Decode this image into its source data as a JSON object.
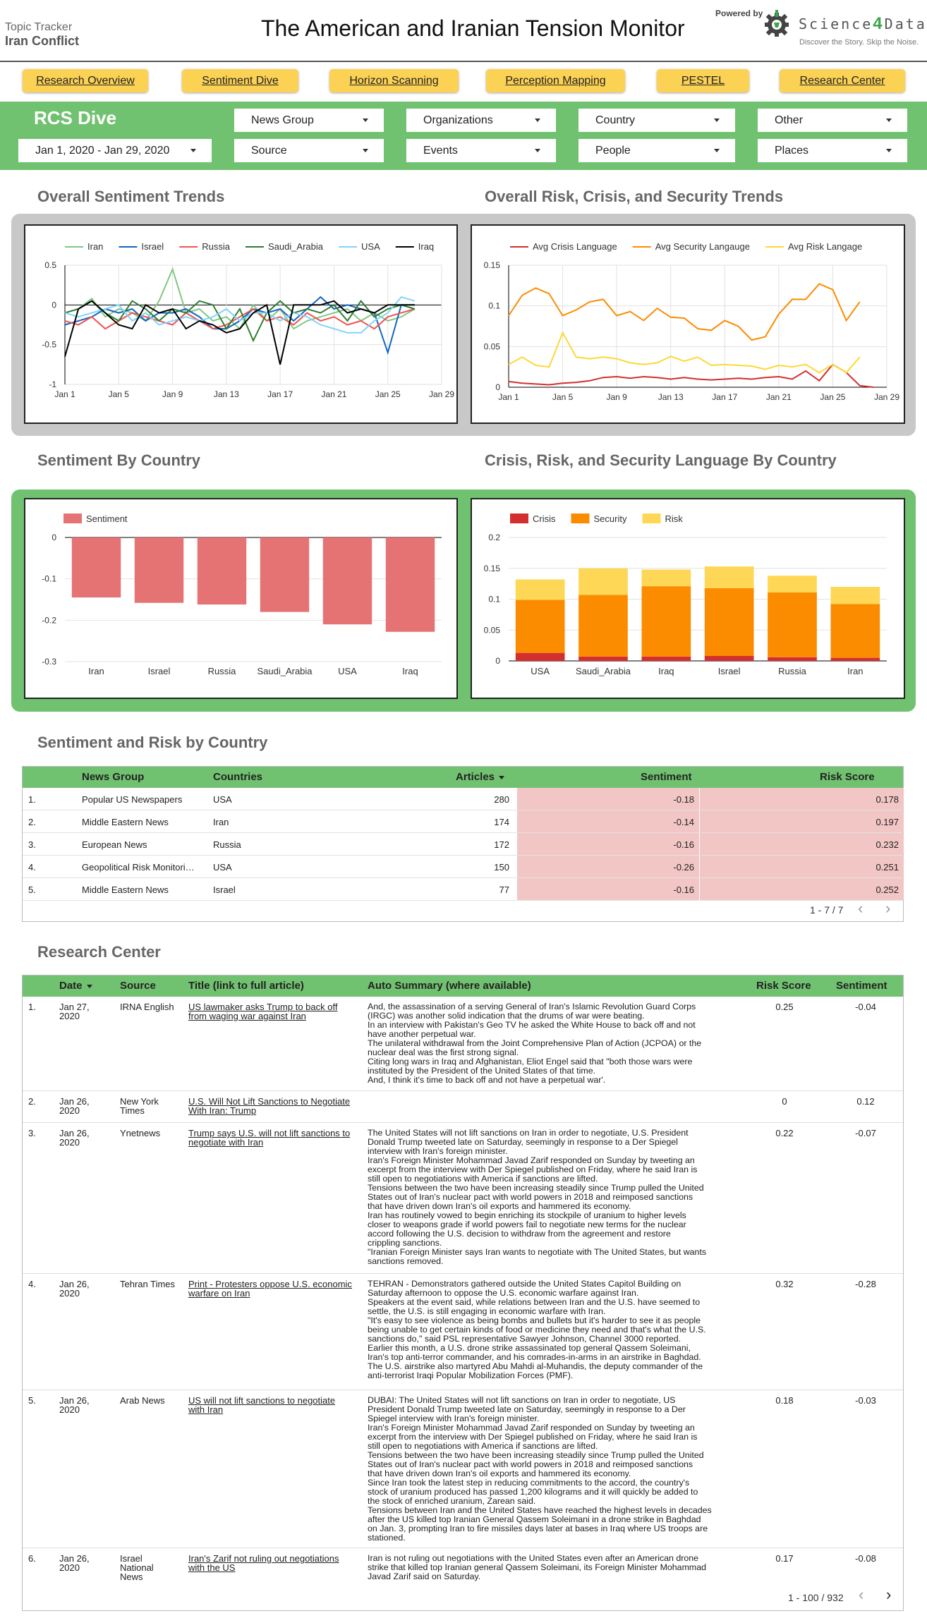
{
  "header": {
    "kicker": "Topic Tracker",
    "topic": "Iran Conflict",
    "title": "The American and Iranian Tension Monitor",
    "powered_by": "Powered by",
    "logo_left": "Science",
    "logo_num": "4",
    "logo_right": "Data",
    "logo_tagline": "Discover the Story. Skip the Noise."
  },
  "nav": [
    "Research Overview",
    "Sentiment Dive",
    "Horizon Scanning",
    "Perception Mapping",
    "PESTEL",
    "Research Center"
  ],
  "filters": {
    "title": "RCS Dive",
    "date_range": "Jan 1, 2020 - Jan 29, 2020",
    "dropdowns": [
      "News Group",
      "Organizations",
      "Country",
      "Other",
      "Source",
      "Events",
      "People",
      "Places"
    ]
  },
  "sections": {
    "sentiment_trends": "Overall Sentiment Trends",
    "risk_trends": "Overall Risk, Crisis, and Security Trends",
    "sentiment_by_country": "Sentiment By Country",
    "crs_by_country": "Crisis, Risk, and Security Language By Country",
    "sentiment_risk_table": "Sentiment and Risk by Country",
    "research_center": "Research Center"
  },
  "colors": {
    "green": "#71c270",
    "yellow_button": "#fcd255",
    "pink_cell": "#f2c6c5",
    "bar_sentiment": "#e57373",
    "crisis": "#d32f2f",
    "security": "#fb8c00",
    "risk": "#fdd755"
  },
  "chart_data": [
    {
      "type": "line",
      "x": [
        "Jan 1",
        "Jan 2",
        "Jan 3",
        "Jan 4",
        "Jan 5",
        "Jan 6",
        "Jan 7",
        "Jan 8",
        "Jan 9",
        "Jan 10",
        "Jan 11",
        "Jan 12",
        "Jan 13",
        "Jan 14",
        "Jan 15",
        "Jan 16",
        "Jan 17",
        "Jan 18",
        "Jan 19",
        "Jan 20",
        "Jan 21",
        "Jan 22",
        "Jan 23",
        "Jan 24",
        "Jan 25",
        "Jan 26",
        "Jan 27"
      ],
      "x_ticks": [
        "Jan 1",
        "Jan 5",
        "Jan 9",
        "Jan 13",
        "Jan 17",
        "Jan 21",
        "Jan 25",
        "Jan 29"
      ],
      "ylim": [
        -1,
        0.5
      ],
      "y_ticks": [
        "0.5",
        "0",
        "-0.5",
        "-1"
      ],
      "legend_position": "top",
      "series": [
        {
          "name": "Iran",
          "color": "#81c784",
          "values": [
            -0.1,
            -0.05,
            0.08,
            -0.15,
            -0.05,
            -0.1,
            -0.2,
            0.05,
            0.45,
            -0.1,
            -0.05,
            -0.2,
            -0.15,
            -0.3,
            0,
            -0.2,
            -0.05,
            -0.3,
            -0.2,
            -0.15,
            -0.1,
            -0.05,
            -0.2,
            -0.1,
            -0.2,
            -0.15,
            -0.05
          ]
        },
        {
          "name": "Israel",
          "color": "#1565c0",
          "values": [
            -0.25,
            -0.2,
            -0.15,
            -0.05,
            -0.1,
            -0.05,
            -0.2,
            -0.1,
            -0.1,
            -0.05,
            -0.15,
            -0.3,
            -0.3,
            -0.2,
            -0.05,
            -0.1,
            -0.05,
            -0.2,
            -0.05,
            0.1,
            -0.05,
            0,
            -0.05,
            -0.1,
            -0.6,
            0,
            0
          ]
        },
        {
          "name": "Russia",
          "color": "#ef5350",
          "values": [
            -0.2,
            -0.25,
            -0.15,
            -0.3,
            -0.2,
            -0.1,
            -0.15,
            -0.2,
            -0.25,
            -0.1,
            -0.2,
            -0.3,
            -0.25,
            -0.15,
            -0.05,
            -0.2,
            -0.15,
            -0.25,
            -0.1,
            -0.2,
            -0.15,
            -0.25,
            -0.2,
            -0.3,
            -0.15,
            -0.1,
            -0.05
          ]
        },
        {
          "name": "Saudi_Arabia",
          "color": "#2e7d32",
          "values": [
            -0.1,
            -0.05,
            0.05,
            -0.1,
            -0.2,
            0.05,
            -0.05,
            -0.2,
            -0.05,
            -0.1,
            0.05,
            0,
            -0.3,
            -0.05,
            -0.45,
            -0.1,
            0.05,
            -0.1,
            -0.05,
            -0.1,
            0,
            -0.2,
            0.05,
            -0.15,
            -0.05,
            0,
            -0.05
          ]
        },
        {
          "name": "USA",
          "color": "#81d4fa",
          "values": [
            -0.1,
            -0.15,
            -0.1,
            -0.05,
            0,
            -0.2,
            -0.1,
            -0.25,
            -0.2,
            -0.15,
            -0.2,
            -0.15,
            -0.05,
            -0.2,
            -0.1,
            -0.1,
            -0.2,
            -0.1,
            -0.15,
            -0.25,
            -0.3,
            -0.35,
            -0.35,
            -0.2,
            -0.1,
            0.1,
            0.05
          ]
        },
        {
          "name": "Iraq",
          "color": "#000000",
          "values": [
            -0.65,
            -0.05,
            0.05,
            -0.1,
            -0.25,
            -0.3,
            0,
            -0.1,
            -0.05,
            -0.3,
            -0.2,
            -0.25,
            -0.35,
            -0.3,
            -0.1,
            0,
            -0.75,
            0,
            0,
            0,
            0.05,
            -0.1,
            -0.05,
            -0.1,
            0,
            0,
            0
          ]
        }
      ]
    },
    {
      "type": "line",
      "x": [
        "Jan 1",
        "Jan 2",
        "Jan 3",
        "Jan 4",
        "Jan 5",
        "Jan 6",
        "Jan 7",
        "Jan 8",
        "Jan 9",
        "Jan 10",
        "Jan 11",
        "Jan 12",
        "Jan 13",
        "Jan 14",
        "Jan 15",
        "Jan 16",
        "Jan 17",
        "Jan 18",
        "Jan 19",
        "Jan 20",
        "Jan 21",
        "Jan 22",
        "Jan 23",
        "Jan 24",
        "Jan 25",
        "Jan 26",
        "Jan 27",
        "Jan 28"
      ],
      "x_ticks": [
        "Jan 1",
        "Jan 5",
        "Jan 9",
        "Jan 13",
        "Jan 17",
        "Jan 21",
        "Jan 25",
        "Jan 29"
      ],
      "ylim": [
        0,
        0.15
      ],
      "y_ticks": [
        "0.15",
        "0.1",
        "0.05",
        "0"
      ],
      "legend_position": "top",
      "series": [
        {
          "name": "Avg Crisis Language",
          "color": "#d32f2f",
          "values": [
            0.007,
            0.005,
            0.004,
            0.003,
            0.005,
            0.006,
            0.008,
            0.012,
            0.013,
            0.011,
            0.013,
            0.012,
            0.01,
            0.012,
            0.01,
            0.009,
            0.01,
            0.011,
            0.01,
            0.012,
            0.013,
            0.01,
            0.02,
            0.008,
            0.028,
            0.018,
            0.002,
            0
          ]
        },
        {
          "name": "Avg Security Langauge",
          "color": "#fb8c00",
          "values": [
            0.088,
            0.113,
            0.122,
            0.115,
            0.088,
            0.095,
            0.105,
            0.108,
            0.088,
            0.093,
            0.082,
            0.097,
            0.086,
            0.085,
            0.072,
            0.07,
            0.082,
            0.075,
            0.058,
            0.062,
            0.09,
            0.108,
            0.108,
            0.127,
            0.12,
            0.082,
            0.105,
            null
          ]
        },
        {
          "name": "Avg Risk Langage",
          "color": "#fdd835",
          "values": [
            0.028,
            0.037,
            0.027,
            0.025,
            0.067,
            0.037,
            0.035,
            0.037,
            0.035,
            0.03,
            0.028,
            0.03,
            0.038,
            0.032,
            0.037,
            0.027,
            0.028,
            0.027,
            0.026,
            0.022,
            0.027,
            0.025,
            0.028,
            0.018,
            0.028,
            0.018,
            0.037,
            null
          ]
        }
      ]
    },
    {
      "type": "bar",
      "categories": [
        "Iran",
        "Israel",
        "Russia",
        "Saudi_Arabia",
        "USA",
        "Iraq"
      ],
      "series": [
        {
          "name": "Sentiment",
          "color": "#e57373",
          "values": [
            -0.145,
            -0.158,
            -0.162,
            -0.18,
            -0.21,
            -0.228
          ]
        }
      ],
      "ylim": [
        -0.3,
        0
      ],
      "y_ticks": [
        "0",
        "-0.1",
        "-0.2",
        "-0.3"
      ]
    },
    {
      "type": "bar",
      "stacked": true,
      "categories": [
        "USA",
        "Saudi_Arabia",
        "Iraq",
        "Israel",
        "Russia",
        "Iran"
      ],
      "series": [
        {
          "name": "Crisis",
          "color": "#d32f2f",
          "values": [
            0.013,
            0.007,
            0.007,
            0.008,
            0.006,
            0.005
          ]
        },
        {
          "name": "Security",
          "color": "#fb8c00",
          "values": [
            0.086,
            0.1,
            0.114,
            0.11,
            0.105,
            0.087
          ]
        },
        {
          "name": "Risk",
          "color": "#fdd755",
          "values": [
            0.033,
            0.043,
            0.027,
            0.035,
            0.027,
            0.028
          ]
        }
      ],
      "ylim": [
        0,
        0.2
      ],
      "y_ticks": [
        "0.2",
        "0.15",
        "0.1",
        "0.05",
        "0"
      ]
    }
  ],
  "country_table": {
    "headers": [
      "News Group",
      "Countries",
      "Articles",
      "Sentiment",
      "Risk Score"
    ],
    "rows": [
      {
        "n": "1.",
        "group": "Popular US Newspapers",
        "country": "USA",
        "articles": "280",
        "sentiment": "-0.18",
        "risk": "0.178"
      },
      {
        "n": "2.",
        "group": "Middle Eastern News",
        "country": "Iran",
        "articles": "174",
        "sentiment": "-0.14",
        "risk": "0.197"
      },
      {
        "n": "3.",
        "group": "European News",
        "country": "Russia",
        "articles": "172",
        "sentiment": "-0.16",
        "risk": "0.232"
      },
      {
        "n": "4.",
        "group": "Geopolitical Risk Monitori…",
        "country": "USA",
        "articles": "150",
        "sentiment": "-0.26",
        "risk": "0.251"
      },
      {
        "n": "5.",
        "group": "Middle Eastern News",
        "country": "Israel",
        "articles": "77",
        "sentiment": "-0.16",
        "risk": "0.252"
      }
    ],
    "pager": "1 - 7 / 7"
  },
  "research": {
    "headers": [
      "Date",
      "Source",
      "Title (link to full article)",
      "Auto Summary (where available)",
      "Risk Score",
      "Sentiment"
    ],
    "rows": [
      {
        "n": "1.",
        "date": "Jan 27,\n2020",
        "source": "IRNA English",
        "title": "US lawmaker asks Trump to back off\nfrom waging war against Iran",
        "summary": "And, the assassination of a serving General of Iran's Islamic Revolution Guard Corps\n(IRGC) was another solid indication that the drums of war were beating.\nIn an interview with Pakistan's Geo TV he asked the White House to back off and not\nhave another perpetual war.\nThe unilateral withdrawal from the Joint Comprehensive Plan of Action (JCPOA) or the\nnuclear deal was the first strong signal.\nCiting long wars in Iraq and Afghanistan, Eliot Engel said that \"both those wars were\ninstituted by the President of the United States of that time.\nAnd, I think it's time to back off and not have a perpetual war'.",
        "risk": "0.25",
        "sentiment": "-0.04"
      },
      {
        "n": "2.",
        "date": "Jan 26,\n2020",
        "source": "New York\nTimes",
        "title": "U.S. Will Not Lift Sanctions to Negotiate\nWith Iran: Trump",
        "summary": "",
        "risk": "0",
        "sentiment": "0.12"
      },
      {
        "n": "3.",
        "date": "Jan 26,\n2020",
        "source": "Ynetnews",
        "title": "Trump says U.S. will not lift sanctions to\nnegotiate with Iran",
        "summary": "The United States will not lift sanctions on Iran in order to negotiate, U.S. President\nDonald Trump tweeted late on Saturday, seemingly in response to a Der Spiegel\ninterview with Iran's foreign minister.\nIran's Foreign Minister Mohammad Javad Zarif responded on Sunday by tweeting an\nexcerpt from the interview with Der Spiegel published on Friday, where he said Iran is\nstill open to negotiations with America if sanctions are lifted.\nTensions between the two have been increasing steadily since Trump pulled the United\nStates out of Iran's nuclear pact with world powers in 2018 and reimposed sanctions\nthat have driven down Iran's oil exports and hammered its economy.\nIran has routinely vowed to begin enriching its stockpile of uranium to higher levels\ncloser to weapons grade if world powers fail to negotiate new terms for the nuclear\naccord following the U.S. decision to withdraw from the agreement and restore\ncrippling sanctions.\n\"Iranian Foreign Minister says Iran wants to negotiate with The United States, but wants\nsanctions removed.",
        "risk": "0.22",
        "sentiment": "-0.07"
      },
      {
        "n": "4.",
        "date": "Jan 26,\n2020",
        "source": "Tehran Times",
        "title": "Print - Protesters oppose U.S. economic\nwarfare on Iran",
        "summary": "TEHRAN - Demonstrators gathered outside the United States Capitol Building on\nSaturday afternoon to oppose the U.S. economic warfare against Iran.\nSpeakers at the event said, while relations between Iran and the U.S. have seemed to\nsettle, the U.S. is still engaging in economic warfare with Iran.\n\"It's easy to see violence as being bombs and bullets but it's harder to see it as people\nbeing unable to get certain kinds of food or medicine they need and that's what the U.S.\nsanctions do,\" said PSL representative Sawyer Johnson, Channel 3000 reported.\nEarlier this month, a U.S. drone strike assassinated top general Qassem Soleimani,\nIran's top anti-terror commander, and his comrades-in-arms in an airstrike in Baghdad.\nThe U.S. airstrike also martyred Abu Mahdi al-Muhandis, the deputy commander of the\nanti-terrorist Iraqi Popular Mobilization Forces (PMF).",
        "risk": "0.32",
        "sentiment": "-0.28"
      },
      {
        "n": "5.",
        "date": "Jan 26,\n2020",
        "source": "Arab News",
        "title": "US will not lift sanctions to negotiate\nwith Iran",
        "summary": "DUBAI: The United States will not lift sanctions on Iran in order to negotiate, US\nPresident Donald Trump tweeted late on Saturday, seemingly in response to a Der\nSpiegel interview with Iran's foreign minister.\nIran's Foreign Minister Mohammad Javad Zarif responded on Sunday by tweeting an\nexcerpt from the interview with Der Spiegel published on Friday, where he said Iran is\nstill open to negotiations with America if sanctions are lifted.\nTensions between the two have been increasing steadily since Trump pulled the United\nStates out of Iran's nuclear pact with world powers in 2018 and reimposed sanctions\nthat have driven down Iran's oil exports and hammered its economy.\nSince Iran took the latest step in reducing commitments to the accord, the country's\nstock of uranium produced has passed 1,200 kilograms and it will quickly be added to\nthe stock of enriched uranium, Zarean said.\nTensions between Iran and the United States have reached the highest levels in decades\nafter the US killed top Iranian General Qassem Soleimani in a drone strike in Baghdad\non Jan. 3, prompting Iran to fire missiles days later at bases in Iraq where US troops are\nstationed.",
        "risk": "0.18",
        "sentiment": "-0.03"
      },
      {
        "n": "6.",
        "date": "Jan 26,\n2020",
        "source": "Israel\nNational\nNews",
        "title": "Iran's Zarif not ruling out negotiations\nwith the US",
        "summary": "Iran is not ruling out negotiations with the United States even after an American drone\nstrike that killed top Iranian general Qassem Soleimani, its Foreign Minister Mohammad\nJavad Zarif said on Saturday.\nZarif, however, took a conciliatory tone in the interview with Der Spiegel, and suggested",
        "risk": "0.17",
        "sentiment": "-0.08"
      }
    ],
    "pager": "1 - 100 / 932"
  }
}
